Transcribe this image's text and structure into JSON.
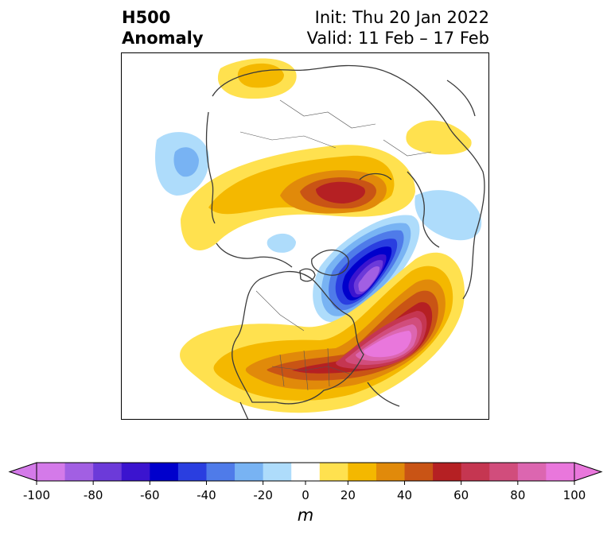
{
  "title": {
    "left": "H500\nAnomaly",
    "right_line1": "Init: Thu 20 Jan 2022",
    "right_line2": "Valid: 11 Feb – 17 Feb"
  },
  "colorbar": {
    "levels": [
      -100,
      -90,
      -80,
      -70,
      -60,
      -50,
      -40,
      -30,
      -20,
      -10,
      10,
      20,
      30,
      40,
      50,
      60,
      70,
      80,
      90,
      100
    ],
    "tick_labels": [
      "-100",
      "-80",
      "-60",
      "-40",
      "-20",
      "0",
      "20",
      "40",
      "60",
      "80",
      "100"
    ],
    "tick_values": [
      -100,
      -80,
      -60,
      -40,
      -20,
      0,
      20,
      40,
      60,
      80,
      100
    ],
    "colors": [
      "#d47ae9",
      "#a25fe3",
      "#6c3ad9",
      "#3b14cf",
      "#0000cc",
      "#2a3ee0",
      "#4f7be9",
      "#78b3f3",
      "#aedcfb",
      "#ffffff",
      "#ffe14f",
      "#f4b800",
      "#e18a0a",
      "#c95415",
      "#b52023",
      "#c53651",
      "#d14d7c",
      "#dc66b0",
      "#e977dc"
    ],
    "extend_min_color": "#d47ae9",
    "extend_max_color": "#e977dc",
    "unit": "m"
  }
}
